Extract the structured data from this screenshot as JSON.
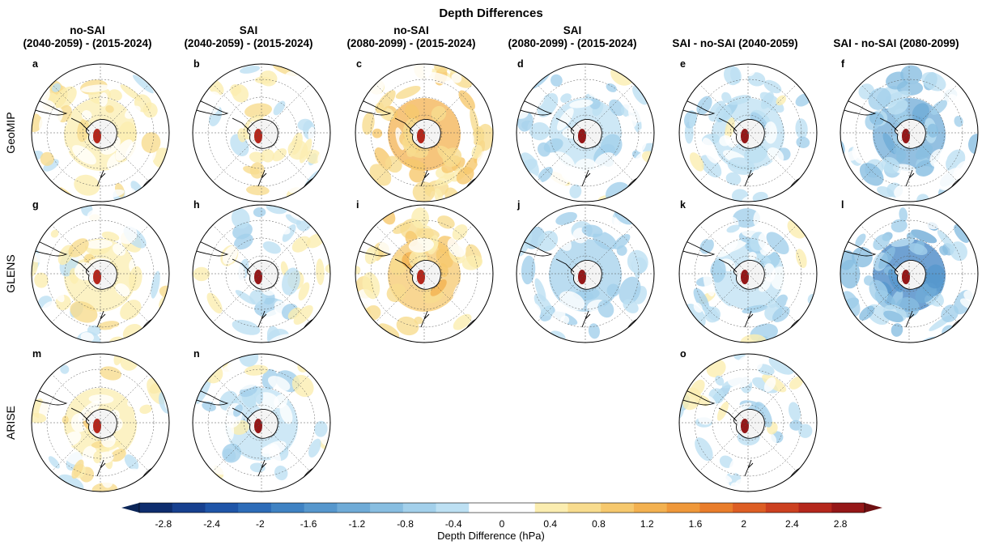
{
  "figure": {
    "title": "Depth Differences"
  },
  "columns": [
    {
      "line1": "no-SAI",
      "line2": "(2040-2059) - (2015-2024)"
    },
    {
      "line1": "SAI",
      "line2": "(2040-2059) - (2015-2024)"
    },
    {
      "line1": "no-SAI",
      "line2": "(2080-2099) - (2015-2024)"
    },
    {
      "line1": "SAI",
      "line2": "(2080-2099) - (2015-2024)"
    },
    {
      "line1": "SAI - no-SAI (2040-2059)",
      "line2": ""
    },
    {
      "line1": "SAI - no-SAI (2080-2099)",
      "line2": ""
    }
  ],
  "rows": [
    "GeoMIP",
    "GLENS",
    "ARISE"
  ],
  "panels": [
    {
      "letter": "a",
      "row": 0,
      "col": 0,
      "mean": 0.35
    },
    {
      "letter": "b",
      "row": 0,
      "col": 1,
      "mean": 0.15
    },
    {
      "letter": "c",
      "row": 0,
      "col": 2,
      "mean": 0.8
    },
    {
      "letter": "d",
      "row": 0,
      "col": 3,
      "mean": -0.35
    },
    {
      "letter": "e",
      "row": 0,
      "col": 4,
      "mean": -0.25
    },
    {
      "letter": "f",
      "row": 0,
      "col": 5,
      "mean": -0.9
    },
    {
      "letter": "g",
      "row": 1,
      "col": 0,
      "mean": 0.25
    },
    {
      "letter": "h",
      "row": 1,
      "col": 1,
      "mean": -0.1
    },
    {
      "letter": "i",
      "row": 1,
      "col": 2,
      "mean": 0.75
    },
    {
      "letter": "j",
      "row": 1,
      "col": 3,
      "mean": -0.45
    },
    {
      "letter": "k",
      "row": 1,
      "col": 4,
      "mean": -0.3
    },
    {
      "letter": "l",
      "row": 1,
      "col": 5,
      "mean": -1.2
    },
    {
      "letter": "m",
      "row": 2,
      "col": 0,
      "mean": 0.3
    },
    {
      "letter": "n",
      "row": 2,
      "col": 1,
      "mean": -0.2
    },
    {
      "letter": "o",
      "row": 2,
      "col": 4,
      "mean": -0.15
    }
  ],
  "colorbar": {
    "label": "Depth Difference (hPa)",
    "min": -3.0,
    "max": 3.0,
    "ticks": [
      "-2.8",
      "-2.4",
      "-2",
      "-1.6",
      "-1.2",
      "-0.8",
      "-0.4",
      "0",
      "0.4",
      "0.8",
      "1.2",
      "1.6",
      "2",
      "2.4",
      "2.8"
    ],
    "colors": [
      "#0e2d6e",
      "#17408f",
      "#1f55a8",
      "#2d6cb8",
      "#3f82c3",
      "#5697cd",
      "#6fabd7",
      "#88bee1",
      "#a3d0eb",
      "#bde0f3",
      "#ffffff",
      "#ffffff",
      "#fbedb0",
      "#f8dc8e",
      "#f6c86d",
      "#f3b150",
      "#ef983a",
      "#e97d2b",
      "#dd5e24",
      "#cc4020",
      "#b5271c",
      "#951718"
    ]
  }
}
